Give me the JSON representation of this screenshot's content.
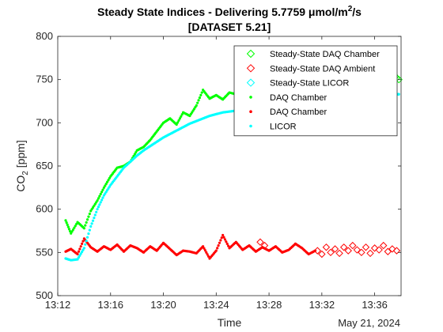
{
  "chart_data": {
    "type": "scatter",
    "title_line1_prefix": "Steady State Indices - Delivering 5.7759 μmol/m",
    "title_line1_sup": "2",
    "title_line1_suffix": "/s",
    "title_line2": "[DATASET 5.21]",
    "xlabel": "Time",
    "ylabel_main": "CO",
    "ylabel_sub": "2",
    "ylabel_unit": " [ppm]",
    "date_label": "May 21, 2024",
    "ylim": [
      500,
      800
    ],
    "xlim": [
      "13:12",
      "13:38"
    ],
    "yticks": [
      500,
      550,
      600,
      650,
      700,
      750,
      800
    ],
    "xticks": [
      "13:12",
      "13:16",
      "13:20",
      "13:24",
      "13:28",
      "13:32",
      "13:36"
    ],
    "grid": false,
    "legend_position": "top-right",
    "legend": [
      {
        "label": "Steady-State DAQ Chamber",
        "marker": "diamond",
        "color": "#00ff00"
      },
      {
        "label": "Steady-State DAQ Ambient",
        "marker": "diamond",
        "color": "#ff0000"
      },
      {
        "label": "Steady-State LICOR",
        "marker": "diamond",
        "color": "#00ffff"
      },
      {
        "label": "DAQ Chamber",
        "marker": "dot",
        "color": "#00ff00"
      },
      {
        "label": "DAQ Chamber",
        "marker": "dot",
        "color": "#ff0000"
      },
      {
        "label": "LICOR",
        "marker": "dot",
        "color": "#00ffff"
      }
    ],
    "series": [
      {
        "name": "DAQ Chamber",
        "color": "#00ff00",
        "marker": "dot",
        "x": [
          "13:12:36",
          "13:13:00",
          "13:13:30",
          "13:14:00",
          "13:14:30",
          "13:15:00",
          "13:15:30",
          "13:16:00",
          "13:16:30",
          "13:17:00",
          "13:17:30",
          "13:18:00",
          "13:18:30",
          "13:19:00",
          "13:19:30",
          "13:20:00",
          "13:20:30",
          "13:21:00",
          "13:21:30",
          "13:22:00",
          "13:22:30",
          "13:23:00",
          "13:23:30",
          "13:24:00",
          "13:24:30",
          "13:25:00",
          "13:25:30",
          "13:26:00",
          "13:26:30",
          "13:27:00"
        ],
        "y": [
          587,
          572,
          585,
          578,
          598,
          610,
          625,
          638,
          648,
          650,
          655,
          668,
          672,
          680,
          690,
          700,
          705,
          698,
          712,
          708,
          720,
          738,
          728,
          732,
          727,
          735,
          733,
          728,
          722,
          725
        ]
      },
      {
        "name": "DAQ Chamber",
        "color": "#ff0000",
        "marker": "dot",
        "x": [
          "13:12:36",
          "13:13:00",
          "13:13:30",
          "13:14:00",
          "13:14:30",
          "13:15:00",
          "13:15:30",
          "13:16:00",
          "13:16:30",
          "13:17:00",
          "13:17:30",
          "13:18:00",
          "13:18:30",
          "13:19:00",
          "13:19:30",
          "13:20:00",
          "13:20:30",
          "13:21:00",
          "13:21:30",
          "13:22:00",
          "13:22:30",
          "13:23:00",
          "13:23:30",
          "13:24:00",
          "13:24:30",
          "13:25:00",
          "13:25:30",
          "13:26:00",
          "13:26:30",
          "13:27:00",
          "13:27:30",
          "13:28:00",
          "13:28:30",
          "13:29:00",
          "13:29:30",
          "13:30:00",
          "13:30:30",
          "13:31:00",
          "13:31:30"
        ],
        "y": [
          551,
          554,
          548,
          566,
          556,
          551,
          557,
          553,
          559,
          551,
          558,
          555,
          550,
          557,
          552,
          561,
          554,
          547,
          552,
          551,
          549,
          557,
          543,
          552,
          570,
          555,
          562,
          553,
          558,
          551,
          556,
          552,
          557,
          550,
          553,
          560,
          555,
          548,
          552
        ]
      },
      {
        "name": "LICOR",
        "color": "#00ffff",
        "marker": "dot",
        "x": [
          "13:12:36",
          "13:13:00",
          "13:13:30",
          "13:14:00",
          "13:14:30",
          "13:15:00",
          "13:15:30",
          "13:16:00",
          "13:16:30",
          "13:17:00",
          "13:17:30",
          "13:18:00",
          "13:18:30",
          "13:19:00",
          "13:19:30",
          "13:20:00",
          "13:20:30",
          "13:21:00",
          "13:21:30",
          "13:22:00",
          "13:22:30",
          "13:23:00",
          "13:23:30",
          "13:24:00",
          "13:24:30",
          "13:25:00",
          "13:25:30",
          "13:26:00",
          "13:26:30",
          "13:27:00"
        ],
        "y": [
          543,
          541,
          542,
          555,
          580,
          600,
          616,
          628,
          638,
          648,
          655,
          662,
          668,
          673,
          678,
          683,
          687,
          691,
          695,
          699,
          702,
          705,
          708,
          710,
          712,
          713,
          714,
          715,
          716,
          717
        ]
      },
      {
        "name": "Steady-State DAQ Chamber",
        "color": "#00ff00",
        "marker": "diamond",
        "x": [
          "13:37:00",
          "13:37:10",
          "13:37:20",
          "13:37:30",
          "13:37:40",
          "13:37:50"
        ],
        "y": [
          762,
          760,
          757,
          755,
          752,
          750
        ]
      },
      {
        "name": "Steady-State DAQ Ambient",
        "color": "#ff0000",
        "marker": "diamond",
        "x": [
          "13:27:20",
          "13:27:40",
          "13:31:40",
          "13:32:00",
          "13:32:20",
          "13:32:40",
          "13:33:00",
          "13:33:20",
          "13:33:40",
          "13:34:00",
          "13:34:20",
          "13:34:40",
          "13:35:00",
          "13:35:20",
          "13:35:40",
          "13:36:00",
          "13:36:20",
          "13:36:40",
          "13:37:00",
          "13:37:20",
          "13:37:40"
        ],
        "y": [
          562,
          558,
          552,
          548,
          556,
          550,
          554,
          549,
          556,
          552,
          558,
          553,
          550,
          556,
          549,
          555,
          553,
          558,
          551,
          554,
          552
        ]
      },
      {
        "name": "LICOR",
        "color": "#00ffff",
        "marker": "dot",
        "x": [
          "13:36:40",
          "13:37:00",
          "13:37:20",
          "13:37:40",
          "13:37:50"
        ],
        "y": [
          734,
          734,
          733,
          733,
          733
        ]
      }
    ]
  }
}
